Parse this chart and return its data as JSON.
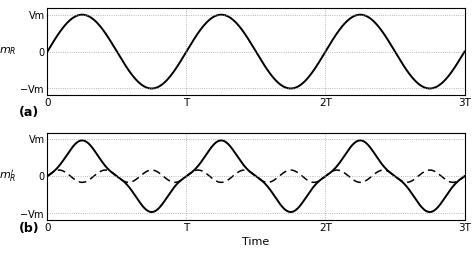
{
  "xlabel": "Time",
  "ylabel_a": "$m_R$",
  "ylabel_b": "$m_R'$",
  "background_color": "#ffffff",
  "grid_color": "#999999",
  "line_color": "#000000",
  "Vm": 1.0,
  "periods": 3,
  "cm_amplitude": 0.1667,
  "cm_freq_mult": 3,
  "figsize": [
    4.74,
    2.68
  ],
  "dpi": 100
}
